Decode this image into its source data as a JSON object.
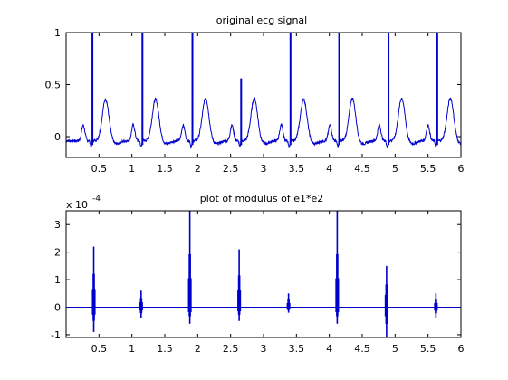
{
  "chart_data": [
    {
      "type": "line",
      "title": "original ecg signal",
      "xlim": [
        0,
        6
      ],
      "ylim": [
        -0.2,
        1
      ],
      "xticks": [
        0.5,
        1,
        1.5,
        2,
        2.5,
        3,
        3.5,
        4,
        4.5,
        5,
        5.5,
        6
      ],
      "xtick_labels": [
        "0.5",
        "1",
        "1.5",
        "2",
        "2.5",
        "3",
        "3.5",
        "4",
        "4.5",
        "5",
        "5.5",
        "6"
      ],
      "yticks": [
        0,
        0.5,
        1
      ],
      "ytick_labels": [
        "0",
        "0.5",
        "1"
      ],
      "grid": false,
      "line_color": "#0000cc",
      "beats": [
        {
          "t": 0.26,
          "p_peak": 0.1,
          "r_peak": 1.0,
          "t_peak": 0.35
        },
        {
          "t": 1.02,
          "p_peak": 0.1,
          "r_peak": 1.0,
          "t_peak": 0.35
        },
        {
          "t": 1.78,
          "p_peak": 0.1,
          "r_peak": 1.0,
          "t_peak": 0.36
        },
        {
          "t": 2.52,
          "p_peak": 0.1,
          "r_peak": 0.56,
          "t_peak": 0.36
        },
        {
          "t": 3.27,
          "p_peak": 0.1,
          "r_peak": 1.0,
          "t_peak": 0.35
        },
        {
          "t": 4.01,
          "p_peak": 0.1,
          "r_peak": 1.0,
          "t_peak": 0.36
        },
        {
          "t": 4.76,
          "p_peak": 0.1,
          "r_peak": 1.0,
          "t_peak": 0.36
        },
        {
          "t": 5.5,
          "p_peak": 0.1,
          "r_peak": 1.0,
          "t_peak": 0.36
        }
      ]
    },
    {
      "type": "line",
      "title": "plot of modulus of e1*e2",
      "exponent_base": "x 10",
      "exponent_power": "-4",
      "xlim": [
        0,
        6
      ],
      "ylim": [
        -1.1,
        3.5
      ],
      "xticks": [
        0.5,
        1,
        1.5,
        2,
        2.5,
        3,
        3.5,
        4,
        4.5,
        5,
        5.5,
        6
      ],
      "xtick_labels": [
        "0.5",
        "1",
        "1.5",
        "2",
        "2.5",
        "3",
        "3.5",
        "4",
        "4.5",
        "5",
        "5.5",
        "6"
      ],
      "yticks": [
        -1,
        0,
        1,
        2,
        3
      ],
      "ytick_labels": [
        "-1",
        "0",
        "1",
        "2",
        "3"
      ],
      "grid": false,
      "line_color": "#0000cc",
      "spikes": [
        {
          "t": 0.42,
          "max": 2.2,
          "min": -0.9
        },
        {
          "t": 1.14,
          "max": 0.6,
          "min": -0.4
        },
        {
          "t": 1.88,
          "max": 3.5,
          "min": -0.6
        },
        {
          "t": 2.63,
          "max": 2.1,
          "min": -0.5
        },
        {
          "t": 3.38,
          "max": 0.5,
          "min": -0.2
        },
        {
          "t": 4.12,
          "max": 3.5,
          "min": -0.6
        },
        {
          "t": 4.87,
          "max": 1.5,
          "min": -1.1
        },
        {
          "t": 5.62,
          "max": 0.5,
          "min": -0.4
        }
      ]
    }
  ]
}
